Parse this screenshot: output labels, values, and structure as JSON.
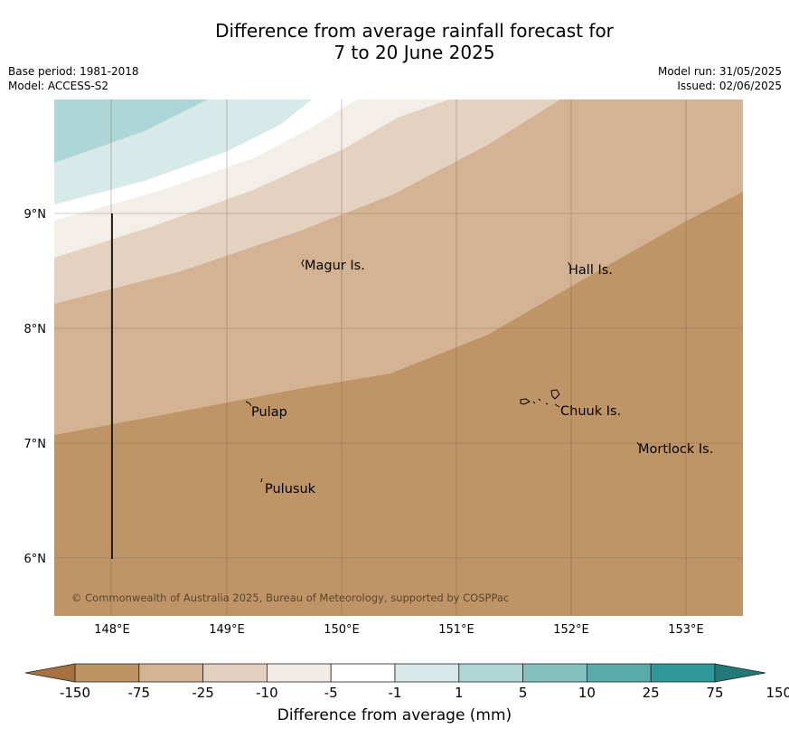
{
  "header": {
    "title_line1": "Difference from average rainfall forecast for",
    "title_line2": "7 to 20 June 2025",
    "base_period": "Base period: 1981-2018",
    "model": "Model: ACCESS-S2",
    "model_run": "Model run: 31/05/2025",
    "issued": "Issued: 02/06/2025"
  },
  "map": {
    "lat_labels": [
      "9°N",
      "8°N",
      "7°N",
      "6°N"
    ],
    "lon_labels": [
      "148°E",
      "149°E",
      "150°E",
      "151°E",
      "152°E",
      "153°E"
    ],
    "places": [
      "Magur Is.",
      "Hall Is.",
      "Pulap",
      "Chuuk Is.",
      "Mortlock Is.",
      "Pulusuk"
    ],
    "copyright": "© Commonwealth of Australia 2025, Bureau of Meteorology, supported by COSPPac"
  },
  "colorbar": {
    "ticks": [
      "-150",
      "-75",
      "-25",
      "-10",
      "-5",
      "-1",
      "1",
      "5",
      "10",
      "25",
      "75",
      "150"
    ],
    "colors": [
      "#a87240",
      "#be9464",
      "#d3b393",
      "#e3d0bf",
      "#f3ece6",
      "#ffffff",
      "#d7e9e9",
      "#b0d6d6",
      "#85c0c0",
      "#5aabab",
      "#2f9898",
      "#237878"
    ],
    "label": "Difference from average (mm)"
  }
}
